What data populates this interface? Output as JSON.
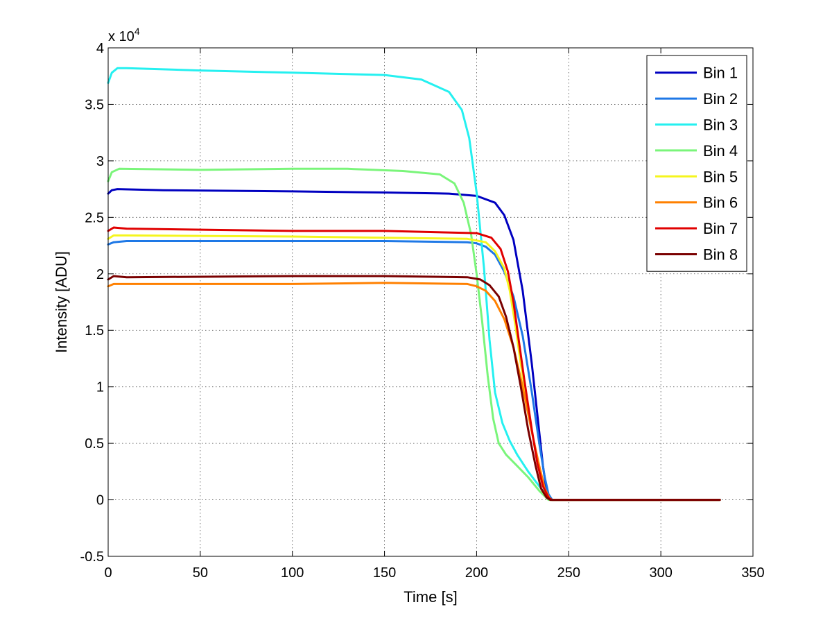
{
  "chart_data": {
    "type": "line",
    "title": "",
    "xlabel": "Time [s]",
    "ylabel": "Intensity [ADU]",
    "y_exponent_label": "x 10",
    "y_exponent_power": "4",
    "xlim": [
      0,
      350
    ],
    "ylim": [
      -0.5,
      4
    ],
    "x_ticks": [
      0,
      50,
      100,
      150,
      200,
      250,
      300,
      350
    ],
    "x_tick_labels": [
      "0",
      "50",
      "100",
      "150",
      "200",
      "250",
      "300",
      "350"
    ],
    "y_ticks": [
      -0.5,
      0,
      0.5,
      1,
      1.5,
      2,
      2.5,
      3,
      3.5,
      4
    ],
    "y_tick_labels": [
      "-0.5",
      "0",
      "0.5",
      "1",
      "1.5",
      "2",
      "2.5",
      "3",
      "3.5",
      "4"
    ],
    "grid": true,
    "legend_position": "top-right",
    "series": [
      {
        "name": "Bin 1",
        "color": "#0000c0",
        "x": [
          0,
          2,
          5,
          30,
          100,
          150,
          185,
          200,
          210,
          215,
          220,
          225,
          230,
          233,
          236,
          238,
          240,
          332
        ],
        "y": [
          2.71,
          2.74,
          2.75,
          2.74,
          2.73,
          2.72,
          2.71,
          2.69,
          2.63,
          2.52,
          2.3,
          1.85,
          1.2,
          0.75,
          0.3,
          0.08,
          0.0,
          0.0
        ]
      },
      {
        "name": "Bin 2",
        "color": "#1e78e6",
        "x": [
          0,
          3,
          10,
          100,
          150,
          195,
          200,
          205,
          210,
          215,
          220,
          225,
          230,
          234,
          237,
          239,
          241,
          332
        ],
        "y": [
          2.26,
          2.28,
          2.29,
          2.29,
          2.29,
          2.28,
          2.27,
          2.24,
          2.17,
          2.02,
          1.8,
          1.45,
          0.95,
          0.5,
          0.2,
          0.05,
          0.0,
          0.0
        ]
      },
      {
        "name": "Bin 3",
        "color": "#25f0f0",
        "x": [
          0,
          2,
          5,
          10,
          50,
          100,
          150,
          170,
          185,
          192,
          196,
          200,
          204,
          207,
          210,
          214,
          218,
          222,
          228,
          234,
          238,
          241,
          332
        ],
        "y": [
          3.69,
          3.78,
          3.82,
          3.82,
          3.8,
          3.78,
          3.76,
          3.72,
          3.61,
          3.45,
          3.2,
          2.72,
          2.05,
          1.42,
          0.95,
          0.68,
          0.52,
          0.4,
          0.25,
          0.12,
          0.04,
          0.0,
          0.0
        ]
      },
      {
        "name": "Bin 4",
        "color": "#7af57a",
        "x": [
          0,
          2,
          6,
          50,
          100,
          130,
          160,
          180,
          188,
          193,
          197,
          200,
          203,
          206,
          209,
          212,
          216,
          222,
          228,
          234,
          239,
          332
        ],
        "y": [
          2.82,
          2.9,
          2.93,
          2.92,
          2.93,
          2.93,
          2.91,
          2.88,
          2.8,
          2.63,
          2.35,
          2.0,
          1.58,
          1.1,
          0.72,
          0.5,
          0.4,
          0.3,
          0.2,
          0.08,
          0.0,
          0.0
        ]
      },
      {
        "name": "Bin 5",
        "color": "#f5f51e",
        "x": [
          0,
          3,
          10,
          100,
          150,
          195,
          205,
          210,
          215,
          218,
          221,
          224,
          228,
          232,
          235,
          238,
          240,
          332
        ],
        "y": [
          2.31,
          2.34,
          2.34,
          2.33,
          2.32,
          2.31,
          2.28,
          2.2,
          2.05,
          1.85,
          1.55,
          1.2,
          0.8,
          0.42,
          0.18,
          0.04,
          0.0,
          0.0
        ]
      },
      {
        "name": "Bin 6",
        "color": "#ff8000",
        "x": [
          0,
          3,
          10,
          100,
          150,
          195,
          200,
          205,
          210,
          215,
          220,
          225,
          230,
          234,
          237,
          240,
          332
        ],
        "y": [
          1.89,
          1.91,
          1.91,
          1.91,
          1.92,
          1.91,
          1.89,
          1.85,
          1.76,
          1.6,
          1.35,
          1.0,
          0.6,
          0.3,
          0.1,
          0.0,
          0.0
        ]
      },
      {
        "name": "Bin 7",
        "color": "#e00000",
        "x": [
          0,
          3,
          10,
          100,
          150,
          200,
          208,
          213,
          217,
          220,
          223,
          226,
          230,
          233,
          236,
          239,
          241,
          332
        ],
        "y": [
          2.38,
          2.41,
          2.4,
          2.38,
          2.38,
          2.36,
          2.32,
          2.22,
          2.02,
          1.75,
          1.4,
          1.05,
          0.62,
          0.32,
          0.12,
          0.02,
          0.0,
          0.0
        ]
      },
      {
        "name": "Bin 8",
        "color": "#7a0000",
        "x": [
          0,
          3,
          10,
          100,
          150,
          195,
          202,
          207,
          212,
          216,
          220,
          224,
          228,
          232,
          235,
          238,
          240,
          332
        ],
        "y": [
          1.95,
          1.98,
          1.97,
          1.98,
          1.98,
          1.97,
          1.95,
          1.9,
          1.8,
          1.62,
          1.35,
          1.0,
          0.62,
          0.3,
          0.1,
          0.02,
          0.0,
          0.0
        ]
      }
    ]
  }
}
